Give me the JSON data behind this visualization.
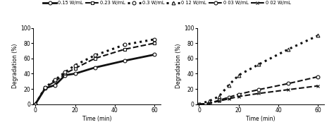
{
  "left_plot": {
    "series": [
      {
        "label": "0.15 W/mL",
        "x": [
          0,
          5,
          10,
          15,
          20,
          30,
          45,
          60
        ],
        "y": [
          0,
          21,
          25,
          38,
          40,
          48,
          57,
          65
        ],
        "linestyle": "-",
        "linewidth": 2.0,
        "marker": "o",
        "markerfacecolor": "white",
        "color": "#111111"
      },
      {
        "label": "0.23 W/mL",
        "x": [
          0,
          5,
          10,
          15,
          20,
          30,
          45,
          60
        ],
        "y": [
          0,
          22,
          30,
          40,
          47,
          60,
          72,
          80
        ],
        "linestyle": "--",
        "linewidth": 1.5,
        "marker": "s",
        "markerfacecolor": "white",
        "color": "#111111"
      },
      {
        "label": "0.3 W/mL",
        "x": [
          0,
          5,
          10,
          15,
          20,
          30,
          45,
          60
        ],
        "y": [
          0,
          22,
          32,
          42,
          51,
          64,
          78,
          85
        ],
        "linestyle": ":",
        "linewidth": 2.2,
        "marker": "o",
        "markerfacecolor": "white",
        "color": "#111111"
      }
    ],
    "xlabel": "Time (min)",
    "ylabel": "Degradation (%)",
    "xlim": [
      -1,
      63
    ],
    "ylim": [
      0,
      100
    ],
    "xticks": [
      0,
      20,
      40,
      60
    ],
    "yticks": [
      0,
      20,
      40,
      60,
      80,
      100
    ]
  },
  "right_plot": {
    "series": [
      {
        "label": "0 12 W/mL",
        "x": [
          0,
          5,
          10,
          15,
          20,
          30,
          45,
          60
        ],
        "y": [
          0,
          4,
          10,
          25,
          38,
          52,
          72,
          90
        ],
        "linestyle": ":",
        "linewidth": 2.2,
        "marker": "^",
        "markerfacecolor": "white",
        "color": "#111111"
      },
      {
        "label": "0 03 W/mL",
        "x": [
          0,
          5,
          10,
          15,
          20,
          30,
          45,
          60
        ],
        "y": [
          0,
          1,
          5,
          9,
          13,
          19,
          27,
          36
        ],
        "linestyle": "--",
        "linewidth": 1.5,
        "marker": "o",
        "markerfacecolor": "white",
        "color": "#111111"
      },
      {
        "label": "0 02 W/mL",
        "x": [
          0,
          5,
          10,
          15,
          20,
          30,
          45,
          60
        ],
        "y": [
          0,
          1,
          4,
          7,
          10,
          14,
          19,
          24
        ],
        "linestyle": "--",
        "linewidth": 1.5,
        "marker": "x",
        "markerfacecolor": "#111111",
        "color": "#111111"
      }
    ],
    "xlabel": "Time (min)",
    "ylabel": "Degradation (%)",
    "xlim": [
      -1,
      63
    ],
    "ylim": [
      0,
      100
    ],
    "xticks": [
      0,
      20,
      40,
      60
    ],
    "yticks": [
      0,
      20,
      40,
      60,
      80,
      100
    ]
  },
  "legend_items": [
    {
      "label": "0.15 W/mL",
      "linestyle": "-",
      "linewidth": 2.0,
      "marker": "o",
      "markerfacecolor": "white",
      "color": "#111111"
    },
    {
      "label": "0.23 W/mL",
      "linestyle": "--",
      "linewidth": 1.5,
      "marker": "s",
      "markerfacecolor": "white",
      "color": "#111111"
    },
    {
      "label": "0.3 W/mL",
      "linestyle": ":",
      "linewidth": 2.2,
      "marker": "o",
      "markerfacecolor": "white",
      "color": "#111111"
    },
    {
      "label": "0 12 W/mL",
      "linestyle": ":",
      "linewidth": 2.2,
      "marker": "^",
      "markerfacecolor": "white",
      "color": "#111111"
    },
    {
      "label": "0 03 W/mL",
      "linestyle": "--",
      "linewidth": 1.5,
      "marker": "o",
      "markerfacecolor": "white",
      "color": "#111111"
    },
    {
      "label": "0 02 W/mL",
      "linestyle": "--",
      "linewidth": 1.5,
      "marker": "x",
      "markerfacecolor": "#111111",
      "color": "#111111"
    }
  ],
  "background_color": "#ffffff",
  "fig_width": 4.74,
  "fig_height": 1.8,
  "dpi": 100
}
